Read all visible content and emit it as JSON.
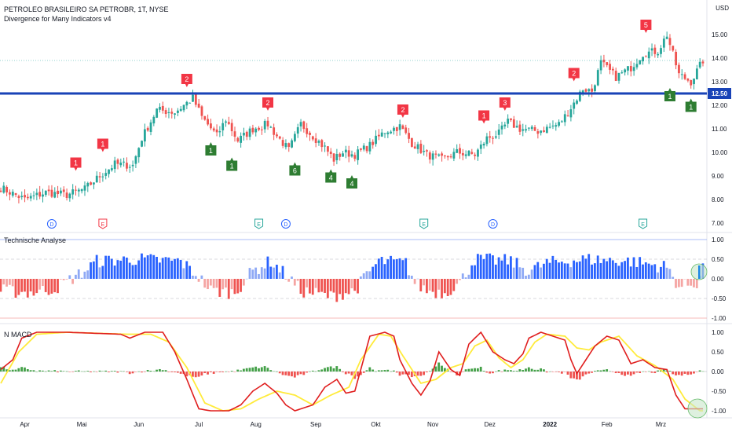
{
  "header": {
    "title": "PETROLEO BRASILEIRO SA PETROBR, 1T, NYSE",
    "subtitle": "Divergence for Many Indicators v4",
    "currency": "USD"
  },
  "panels": {
    "ta_label": "Technische Analyse",
    "macd_label": "N MACD"
  },
  "colors": {
    "up": "#26a69a",
    "down": "#ef5350",
    "level_line": "#1943b7",
    "bear_marker": "#f23645",
    "bull_marker": "#2e7d32",
    "ta_pos": "#2962ff",
    "ta_pos_light": "#8fa9f5",
    "ta_neg": "#ef5350",
    "ta_neg_light": "#f5a5a3",
    "macd_line": "#e01e1e",
    "signal_line": "#ffeb3b",
    "hist_pos": "#43a047",
    "hist_neg": "#ef5350"
  },
  "chart_data": [
    {
      "type": "candlestick",
      "title": "PETROLEO BRASILEIRO SA PETROBR, 1T, NYSE",
      "ylabel": "USD",
      "ylim": [
        6.8,
        15.6
      ],
      "yticks": [
        "15.00",
        "14.00",
        "13.00",
        "12.00",
        "11.00",
        "10.00",
        "9.00",
        "8.00",
        "7.00"
      ],
      "level": {
        "value": 12.5,
        "label": "12.50"
      },
      "last_close": 13.9,
      "close_anchors": [
        [
          0,
          8.5
        ],
        [
          8,
          8.0
        ],
        [
          15,
          8.3
        ],
        [
          22,
          8.2
        ],
        [
          28,
          8.45
        ],
        [
          33,
          9.0
        ],
        [
          38,
          9.5
        ],
        [
          44,
          9.45
        ],
        [
          47,
          10.6
        ],
        [
          52,
          11.8
        ],
        [
          58,
          11.7
        ],
        [
          62,
          12.1
        ],
        [
          64,
          12.3
        ],
        [
          67,
          11.5
        ],
        [
          72,
          10.7
        ],
        [
          75,
          11.4
        ],
        [
          79,
          10.5
        ],
        [
          84,
          11.0
        ],
        [
          89,
          11.2
        ],
        [
          92,
          10.7
        ],
        [
          96,
          10.1
        ],
        [
          100,
          11.2
        ],
        [
          104,
          10.7
        ],
        [
          108,
          10.2
        ],
        [
          111,
          9.7
        ],
        [
          114,
          10.0
        ],
        [
          118,
          9.9
        ],
        [
          123,
          10.3
        ],
        [
          128,
          10.9
        ],
        [
          133,
          11.1
        ],
        [
          137,
          10.4
        ],
        [
          142,
          9.9
        ],
        [
          147,
          9.7
        ],
        [
          152,
          10.0
        ],
        [
          158,
          9.9
        ],
        [
          162,
          10.6
        ],
        [
          166,
          10.8
        ],
        [
          169,
          11.3
        ],
        [
          173,
          11.0
        ],
        [
          179,
          10.9
        ],
        [
          186,
          11.2
        ],
        [
          189,
          11.7
        ],
        [
          194,
          12.7
        ],
        [
          197,
          12.6
        ],
        [
          200,
          13.8
        ],
        [
          205,
          13.2
        ],
        [
          210,
          13.6
        ],
        [
          214,
          14.2
        ],
        [
          219,
          14.3
        ],
        [
          222,
          15.0
        ],
        [
          226,
          13.3
        ],
        [
          230,
          13.0
        ],
        [
          234,
          13.9
        ]
      ],
      "markers": [
        {
          "type": "bear",
          "label": "1",
          "x": 25,
          "price": 9.05
        },
        {
          "type": "bear",
          "label": "1",
          "x": 34,
          "price": 9.85
        },
        {
          "type": "bear",
          "label": "2",
          "x": 62,
          "price": 12.6
        },
        {
          "type": "bull",
          "label": "1",
          "x": 70,
          "price": 10.6
        },
        {
          "type": "bull",
          "label": "1",
          "x": 77,
          "price": 9.95
        },
        {
          "type": "bear",
          "label": "2",
          "x": 89,
          "price": 11.6
        },
        {
          "type": "bull",
          "label": "6",
          "x": 98,
          "price": 9.75
        },
        {
          "type": "bull",
          "label": "4",
          "x": 110,
          "price": 9.45
        },
        {
          "type": "bull",
          "label": "4",
          "x": 117,
          "price": 9.2
        },
        {
          "type": "bear",
          "label": "2",
          "x": 134,
          "price": 11.3
        },
        {
          "type": "bear",
          "label": "1",
          "x": 161,
          "price": 11.05
        },
        {
          "type": "bear",
          "label": "3",
          "x": 168,
          "price": 11.6
        },
        {
          "type": "bear",
          "label": "2",
          "x": 191,
          "price": 12.85
        },
        {
          "type": "bear",
          "label": "5",
          "x": 215,
          "price": 14.9
        },
        {
          "type": "bull",
          "label": "1",
          "x": 223,
          "price": 12.9
        },
        {
          "type": "bull",
          "label": "1",
          "x": 230,
          "price": 12.45
        }
      ],
      "events": [
        {
          "label": "D",
          "kind": "dividend",
          "x": 17
        },
        {
          "label": "E",
          "kind": "earnings-red",
          "x": 34
        },
        {
          "label": "E",
          "kind": "earnings-green",
          "x": 86
        },
        {
          "label": "D",
          "kind": "dividend",
          "x": 95
        },
        {
          "label": "E",
          "kind": "earnings-green",
          "x": 141
        },
        {
          "label": "D",
          "kind": "dividend",
          "x": 164
        },
        {
          "label": "E",
          "kind": "earnings-green",
          "x": 214
        }
      ],
      "xticks": [
        {
          "label": "Apr",
          "x": 8,
          "bold": false
        },
        {
          "label": "Mai",
          "x": 27,
          "bold": false
        },
        {
          "label": "Jun",
          "x": 46,
          "bold": false
        },
        {
          "label": "Jul",
          "x": 66,
          "bold": false
        },
        {
          "label": "Aug",
          "x": 85,
          "bold": false
        },
        {
          "label": "Sep",
          "x": 105,
          "bold": false
        },
        {
          "label": "Okt",
          "x": 125,
          "bold": false
        },
        {
          "label": "Nov",
          "x": 144,
          "bold": false
        },
        {
          "label": "Dez",
          "x": 163,
          "bold": false
        },
        {
          "label": "2022",
          "x": 183,
          "bold": true
        },
        {
          "label": "Feb",
          "x": 202,
          "bold": false
        },
        {
          "label": "Mrz",
          "x": 220,
          "bold": false
        }
      ]
    },
    {
      "type": "bar",
      "title": "Technische Analyse",
      "ylim": [
        -1.0,
        1.0
      ],
      "yticks": [
        "1.00",
        "0.50",
        "0.00",
        "-0.50",
        "-1.00"
      ],
      "anchors": [
        [
          0,
          -0.3
        ],
        [
          10,
          -0.35
        ],
        [
          18,
          -0.25
        ],
        [
          28,
          0.2
        ],
        [
          32,
          0.45
        ],
        [
          45,
          0.5
        ],
        [
          60,
          0.45
        ],
        [
          66,
          0.05
        ],
        [
          70,
          -0.3
        ],
        [
          78,
          -0.35
        ],
        [
          84,
          0.2
        ],
        [
          90,
          0.45
        ],
        [
          95,
          0.1
        ],
        [
          100,
          -0.3
        ],
        [
          110,
          -0.45
        ],
        [
          118,
          -0.3
        ],
        [
          122,
          0.1
        ],
        [
          126,
          0.45
        ],
        [
          135,
          0.4
        ],
        [
          138,
          -0.1
        ],
        [
          142,
          -0.3
        ],
        [
          148,
          -0.35
        ],
        [
          153,
          -0.1
        ],
        [
          158,
          0.5
        ],
        [
          170,
          0.45
        ],
        [
          176,
          0.2
        ],
        [
          182,
          0.4
        ],
        [
          195,
          0.5
        ],
        [
          210,
          0.45
        ],
        [
          222,
          0.3
        ],
        [
          226,
          -0.2
        ],
        [
          232,
          -0.1
        ],
        [
          234,
          0.3
        ]
      ]
    },
    {
      "type": "line",
      "title": "N MACD",
      "ylim": [
        -1.0,
        1.0
      ],
      "yticks": [
        "1.00",
        "0.50",
        "0.00",
        "-0.50",
        "-1.00"
      ],
      "series": [
        {
          "key": "macd",
          "values_at": [
            [
              0,
              0.05
            ],
            [
              4,
              0.3
            ],
            [
              7,
              0.85
            ],
            [
              12,
              1.0
            ],
            [
              22,
              1.0
            ],
            [
              40,
              0.95
            ],
            [
              43,
              0.85
            ],
            [
              48,
              1.0
            ],
            [
              54,
              1.0
            ],
            [
              58,
              0.5
            ],
            [
              62,
              -0.2
            ],
            [
              66,
              -0.95
            ],
            [
              70,
              -1.0
            ],
            [
              76,
              -1.0
            ],
            [
              80,
              -0.85
            ],
            [
              84,
              -0.5
            ],
            [
              88,
              -0.3
            ],
            [
              92,
              -0.55
            ],
            [
              95,
              -0.85
            ],
            [
              98,
              -1.0
            ],
            [
              104,
              -0.85
            ],
            [
              108,
              -0.4
            ],
            [
              112,
              -0.2
            ],
            [
              115,
              -0.55
            ],
            [
              118,
              -0.5
            ],
            [
              123,
              0.9
            ],
            [
              128,
              1.0
            ],
            [
              131,
              0.9
            ],
            [
              133,
              0.3
            ],
            [
              137,
              -0.3
            ],
            [
              140,
              -0.6
            ],
            [
              143,
              -0.25
            ],
            [
              146,
              0.5
            ],
            [
              150,
              0.05
            ],
            [
              153,
              -0.1
            ],
            [
              156,
              0.7
            ],
            [
              160,
              1.0
            ],
            [
              164,
              0.5
            ],
            [
              168,
              0.3
            ],
            [
              171,
              0.2
            ],
            [
              174,
              0.45
            ],
            [
              176,
              0.85
            ],
            [
              180,
              1.0
            ],
            [
              184,
              0.9
            ],
            [
              188,
              0.8
            ],
            [
              190,
              0.3
            ],
            [
              192,
              -0.05
            ],
            [
              195,
              0.3
            ],
            [
              198,
              0.65
            ],
            [
              202,
              0.9
            ],
            [
              206,
              0.8
            ],
            [
              210,
              0.2
            ],
            [
              214,
              0.3
            ],
            [
              218,
              0.1
            ],
            [
              222,
              0.05
            ],
            [
              225,
              -0.6
            ],
            [
              228,
              -0.95
            ],
            [
              234,
              -0.95
            ]
          ]
        },
        {
          "key": "signal",
          "values_at": [
            [
              0,
              -0.3
            ],
            [
              6,
              0.5
            ],
            [
              12,
              0.95
            ],
            [
              22,
              1.0
            ],
            [
              42,
              0.95
            ],
            [
              50,
              0.95
            ],
            [
              56,
              0.75
            ],
            [
              62,
              0.1
            ],
            [
              68,
              -0.8
            ],
            [
              74,
              -1.0
            ],
            [
              80,
              -0.95
            ],
            [
              86,
              -0.7
            ],
            [
              92,
              -0.5
            ],
            [
              98,
              -0.6
            ],
            [
              104,
              -0.85
            ],
            [
              110,
              -0.6
            ],
            [
              116,
              -0.4
            ],
            [
              120,
              0.3
            ],
            [
              126,
              0.95
            ],
            [
              130,
              0.9
            ],
            [
              134,
              0.4
            ],
            [
              140,
              -0.3
            ],
            [
              145,
              -0.2
            ],
            [
              150,
              0.1
            ],
            [
              154,
              0.2
            ],
            [
              158,
              0.65
            ],
            [
              162,
              0.8
            ],
            [
              166,
              0.35
            ],
            [
              170,
              0.1
            ],
            [
              174,
              0.3
            ],
            [
              178,
              0.75
            ],
            [
              182,
              0.95
            ],
            [
              188,
              0.9
            ],
            [
              192,
              0.6
            ],
            [
              196,
              0.55
            ],
            [
              200,
              0.75
            ],
            [
              206,
              0.9
            ],
            [
              212,
              0.4
            ],
            [
              218,
              0.15
            ],
            [
              224,
              -0.2
            ],
            [
              228,
              -0.7
            ],
            [
              233,
              -1.0
            ],
            [
              234,
              -1.0
            ]
          ]
        }
      ],
      "xticks_ref": "same as price panel"
    }
  ]
}
